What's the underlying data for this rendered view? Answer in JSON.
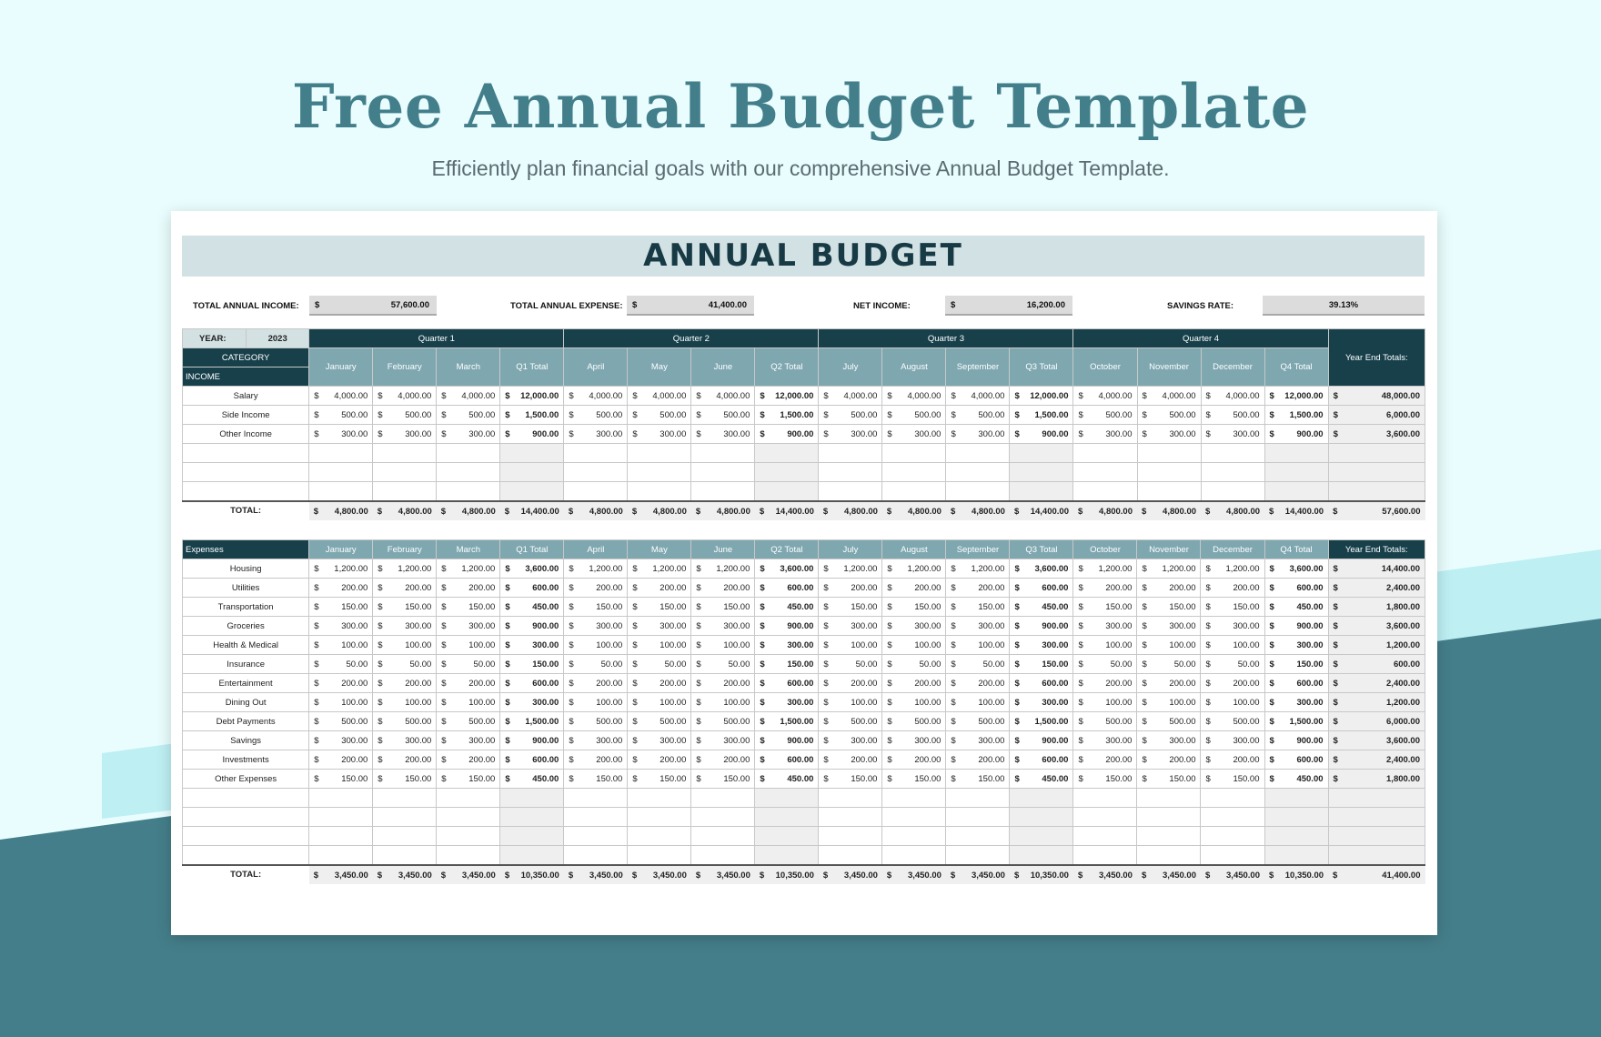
{
  "page": {
    "title": "Free Annual Budget Template",
    "subtitle": "Efficiently plan financial goals with our comprehensive Annual Budget Template."
  },
  "sheet": {
    "heading": "ANNUAL BUDGET",
    "summary": {
      "income_label": "TOTAL ANNUAL INCOME:",
      "income_currency": "$",
      "income_value": "57,600.00",
      "expense_label": "TOTAL ANNUAL EXPENSE:",
      "expense_currency": "$",
      "expense_value": "41,400.00",
      "net_label": "NET INCOME:",
      "net_currency": "$",
      "net_value": "16,200.00",
      "savings_label": "SAVINGS RATE:",
      "savings_value": "39.13%"
    },
    "year_label": "YEAR:",
    "year_value": "2023",
    "category_label": "CATEGORY",
    "income_section_label": "INCOME",
    "expenses_section_label": "Expenses",
    "quarters": [
      "Quarter 1",
      "Quarter 2",
      "Quarter 3",
      "Quarter 4"
    ],
    "columns": [
      "January",
      "February",
      "March",
      "Q1 Total",
      "April",
      "May",
      "June",
      "Q2 Total",
      "July",
      "August",
      "September",
      "Q3 Total",
      "October",
      "November",
      "December",
      "Q4 Total"
    ],
    "year_end_label": "Year End Totals:",
    "total_label": "TOTAL:",
    "currency": "$",
    "income_rows": [
      {
        "label": "Salary",
        "values": [
          "4,000.00",
          "4,000.00",
          "4,000.00",
          "12,000.00",
          "4,000.00",
          "4,000.00",
          "4,000.00",
          "12,000.00",
          "4,000.00",
          "4,000.00",
          "4,000.00",
          "12,000.00",
          "4,000.00",
          "4,000.00",
          "4,000.00",
          "12,000.00"
        ],
        "year_total": "48,000.00"
      },
      {
        "label": "Side Income",
        "values": [
          "500.00",
          "500.00",
          "500.00",
          "1,500.00",
          "500.00",
          "500.00",
          "500.00",
          "1,500.00",
          "500.00",
          "500.00",
          "500.00",
          "1,500.00",
          "500.00",
          "500.00",
          "500.00",
          "1,500.00"
        ],
        "year_total": "6,000.00"
      },
      {
        "label": "Other Income",
        "values": [
          "300.00",
          "300.00",
          "300.00",
          "900.00",
          "300.00",
          "300.00",
          "300.00",
          "900.00",
          "300.00",
          "300.00",
          "300.00",
          "900.00",
          "300.00",
          "300.00",
          "300.00",
          "900.00"
        ],
        "year_total": "3,600.00"
      }
    ],
    "income_total": {
      "values": [
        "4,800.00",
        "4,800.00",
        "4,800.00",
        "14,400.00",
        "4,800.00",
        "4,800.00",
        "4,800.00",
        "14,400.00",
        "4,800.00",
        "4,800.00",
        "4,800.00",
        "14,400.00",
        "4,800.00",
        "4,800.00",
        "4,800.00",
        "14,400.00"
      ],
      "year_total": "57,600.00"
    },
    "expense_rows": [
      {
        "label": "Housing",
        "values": [
          "1,200.00",
          "1,200.00",
          "1,200.00",
          "3,600.00",
          "1,200.00",
          "1,200.00",
          "1,200.00",
          "3,600.00",
          "1,200.00",
          "1,200.00",
          "1,200.00",
          "3,600.00",
          "1,200.00",
          "1,200.00",
          "1,200.00",
          "3,600.00"
        ],
        "year_total": "14,400.00"
      },
      {
        "label": "Utilities",
        "values": [
          "200.00",
          "200.00",
          "200.00",
          "600.00",
          "200.00",
          "200.00",
          "200.00",
          "600.00",
          "200.00",
          "200.00",
          "200.00",
          "600.00",
          "200.00",
          "200.00",
          "200.00",
          "600.00"
        ],
        "year_total": "2,400.00"
      },
      {
        "label": "Transportation",
        "values": [
          "150.00",
          "150.00",
          "150.00",
          "450.00",
          "150.00",
          "150.00",
          "150.00",
          "450.00",
          "150.00",
          "150.00",
          "150.00",
          "450.00",
          "150.00",
          "150.00",
          "150.00",
          "450.00"
        ],
        "year_total": "1,800.00"
      },
      {
        "label": "Groceries",
        "values": [
          "300.00",
          "300.00",
          "300.00",
          "900.00",
          "300.00",
          "300.00",
          "300.00",
          "900.00",
          "300.00",
          "300.00",
          "300.00",
          "900.00",
          "300.00",
          "300.00",
          "300.00",
          "900.00"
        ],
        "year_total": "3,600.00"
      },
      {
        "label": "Health & Medical",
        "values": [
          "100.00",
          "100.00",
          "100.00",
          "300.00",
          "100.00",
          "100.00",
          "100.00",
          "300.00",
          "100.00",
          "100.00",
          "100.00",
          "300.00",
          "100.00",
          "100.00",
          "100.00",
          "300.00"
        ],
        "year_total": "1,200.00"
      },
      {
        "label": "Insurance",
        "values": [
          "50.00",
          "50.00",
          "50.00",
          "150.00",
          "50.00",
          "50.00",
          "50.00",
          "150.00",
          "50.00",
          "50.00",
          "50.00",
          "150.00",
          "50.00",
          "50.00",
          "50.00",
          "150.00"
        ],
        "year_total": "600.00"
      },
      {
        "label": "Entertainment",
        "values": [
          "200.00",
          "200.00",
          "200.00",
          "600.00",
          "200.00",
          "200.00",
          "200.00",
          "600.00",
          "200.00",
          "200.00",
          "200.00",
          "600.00",
          "200.00",
          "200.00",
          "200.00",
          "600.00"
        ],
        "year_total": "2,400.00"
      },
      {
        "label": "Dining Out",
        "values": [
          "100.00",
          "100.00",
          "100.00",
          "300.00",
          "100.00",
          "100.00",
          "100.00",
          "300.00",
          "100.00",
          "100.00",
          "100.00",
          "300.00",
          "100.00",
          "100.00",
          "100.00",
          "300.00"
        ],
        "year_total": "1,200.00"
      },
      {
        "label": "Debt Payments",
        "values": [
          "500.00",
          "500.00",
          "500.00",
          "1,500.00",
          "500.00",
          "500.00",
          "500.00",
          "1,500.00",
          "500.00",
          "500.00",
          "500.00",
          "1,500.00",
          "500.00",
          "500.00",
          "500.00",
          "1,500.00"
        ],
        "year_total": "6,000.00"
      },
      {
        "label": "Savings",
        "values": [
          "300.00",
          "300.00",
          "300.00",
          "900.00",
          "300.00",
          "300.00",
          "300.00",
          "900.00",
          "300.00",
          "300.00",
          "300.00",
          "900.00",
          "300.00",
          "300.00",
          "300.00",
          "900.00"
        ],
        "year_total": "3,600.00"
      },
      {
        "label": "Investments",
        "values": [
          "200.00",
          "200.00",
          "200.00",
          "600.00",
          "200.00",
          "200.00",
          "200.00",
          "600.00",
          "200.00",
          "200.00",
          "200.00",
          "600.00",
          "200.00",
          "200.00",
          "200.00",
          "600.00"
        ],
        "year_total": "2,400.00"
      },
      {
        "label": "Other Expenses",
        "values": [
          "150.00",
          "150.00",
          "150.00",
          "450.00",
          "150.00",
          "150.00",
          "150.00",
          "450.00",
          "150.00",
          "150.00",
          "150.00",
          "450.00",
          "150.00",
          "150.00",
          "150.00",
          "450.00"
        ],
        "year_total": "1,800.00"
      }
    ],
    "expense_total": {
      "values": [
        "3,450.00",
        "3,450.00",
        "3,450.00",
        "10,350.00",
        "3,450.00",
        "3,450.00",
        "3,450.00",
        "10,350.00",
        "3,450.00",
        "3,450.00",
        "3,450.00",
        "10,350.00",
        "3,450.00",
        "3,450.00",
        "3,450.00",
        "10,350.00"
      ],
      "year_total": "41,400.00"
    },
    "empty_income_rows": 3,
    "empty_expense_rows": 4
  },
  "colors": {
    "page_bg": "#e9fdfe",
    "accent_light": "#bdeff3",
    "accent_dark": "#447e8a",
    "header_dark": "#17404b",
    "header_mid": "#7ea7b0",
    "banner": "#d2e1e3"
  }
}
